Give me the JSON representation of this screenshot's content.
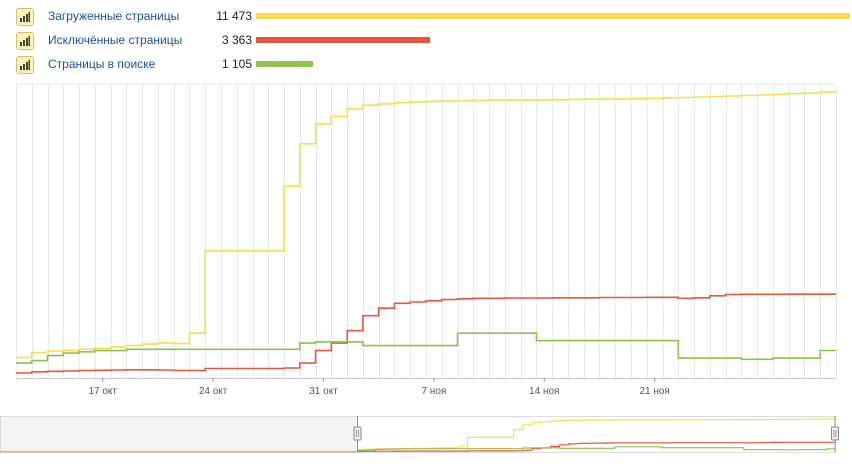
{
  "legend": {
    "items": [
      {
        "label": "Загруженные страницы",
        "value": "11 473",
        "color": "#f8dc50",
        "bar_fraction": 1.0
      },
      {
        "label": "Исключённые страницы",
        "value": "3 363",
        "color": "#e8553a",
        "bar_fraction": 0.293
      },
      {
        "label": "Страницы в поиске",
        "value": "1 105",
        "color": "#8bc34a",
        "bar_fraction": 0.096
      }
    ],
    "icon": "bar-chart-icon"
  },
  "chart_data": {
    "type": "line",
    "step": true,
    "x_ticks": [
      "17 окт",
      "24 окт",
      "31 окт",
      "7 ноя",
      "14 ноя",
      "21 ноя"
    ],
    "grid": "vertical",
    "series": [
      {
        "name": "Загруженные страницы",
        "color": "#f8dc50",
        "values": [
          820,
          1020,
          1080,
          1100,
          1150,
          1190,
          1250,
          1300,
          1360,
          1410,
          1380,
          1800,
          5100,
          5100,
          5100,
          5100,
          5100,
          7700,
          9400,
          10200,
          10500,
          10800,
          10950,
          11000,
          11050,
          11080,
          11100,
          11120,
          11130,
          11140,
          11150,
          11150,
          11150,
          11160,
          11170,
          11180,
          11190,
          11200,
          11200,
          11210,
          11220,
          11240,
          11260,
          11280,
          11300,
          11320,
          11340,
          11360,
          11380,
          11420,
          11440,
          11473
        ]
      },
      {
        "name": "Исключённые страницы",
        "color": "#e8553a",
        "values": [
          200,
          250,
          270,
          280,
          300,
          310,
          320,
          330,
          330,
          320,
          300,
          300,
          380,
          380,
          380,
          380,
          380,
          400,
          600,
          1100,
          1400,
          1900,
          2500,
          2800,
          3000,
          3050,
          3100,
          3150,
          3180,
          3200,
          3200,
          3210,
          3210,
          3210,
          3220,
          3220,
          3220,
          3230,
          3230,
          3230,
          3240,
          3240,
          3200,
          3220,
          3300,
          3350,
          3360,
          3360,
          3360,
          3363,
          3363,
          3363
        ]
      },
      {
        "name": "Страницы в поиске",
        "color": "#8bc34a",
        "values": [
          600,
          700,
          900,
          1000,
          1050,
          1100,
          1100,
          1150,
          1150,
          1150,
          1150,
          1150,
          1150,
          1150,
          1150,
          1150,
          1150,
          1150,
          1400,
          1450,
          1450,
          1450,
          1300,
          1300,
          1300,
          1300,
          1300,
          1300,
          1800,
          1800,
          1800,
          1800,
          1800,
          1500,
          1500,
          1500,
          1500,
          1500,
          1500,
          1500,
          1500,
          1500,
          800,
          800,
          800,
          800,
          750,
          750,
          800,
          800,
          800,
          1105
        ]
      }
    ]
  }
}
